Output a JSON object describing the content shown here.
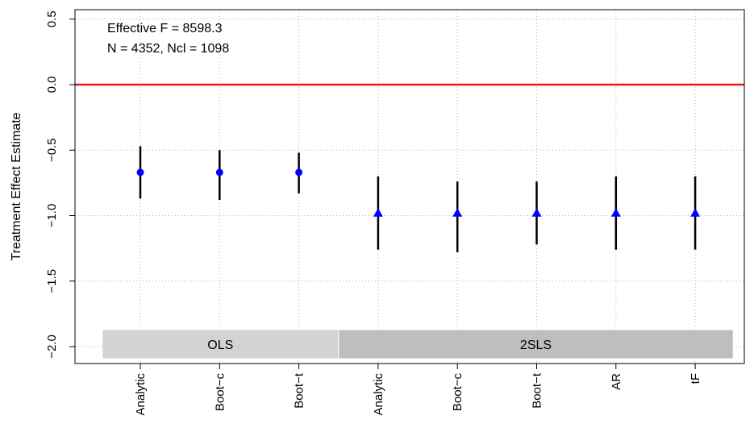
{
  "chart_data": {
    "type": "scatter",
    "title": "",
    "xlabel": "",
    "ylabel": "Treatment Effect Estimate",
    "ylim": [
      -2.05,
      0.55
    ],
    "yticks": [
      -2.0,
      -1.5,
      -1.0,
      -0.5,
      0.0,
      0.5
    ],
    "ytick_labels": [
      "−2.0",
      "−1.5",
      "−1.0",
      "−0.5",
      "0.0",
      "0.5"
    ],
    "grid": true,
    "reference_line": {
      "y": 0.0,
      "color": "#e41a1c"
    },
    "annotations": [
      "Effective F = 8598.3",
      "N = 4352, Ncl = 1098"
    ],
    "groups": [
      {
        "label": "OLS",
        "start": 1,
        "end": 3,
        "color": "#d3d3d3"
      },
      {
        "label": "2SLS",
        "start": 4,
        "end": 8,
        "color": "#bebebe"
      }
    ],
    "categories": [
      "Analytic",
      "Boot−c",
      "Boot−t",
      "Analytic",
      "Boot−c",
      "Boot−t",
      "AR",
      "tF"
    ],
    "points": [
      {
        "estimate": -0.67,
        "lower": -0.87,
        "upper": -0.47,
        "marker": "circle"
      },
      {
        "estimate": -0.67,
        "lower": -0.88,
        "upper": -0.5,
        "marker": "circle"
      },
      {
        "estimate": -0.67,
        "lower": -0.83,
        "upper": -0.52,
        "marker": "circle"
      },
      {
        "estimate": -0.98,
        "lower": -1.26,
        "upper": -0.7,
        "marker": "triangle"
      },
      {
        "estimate": -0.98,
        "lower": -1.28,
        "upper": -0.74,
        "marker": "triangle"
      },
      {
        "estimate": -0.98,
        "lower": -1.22,
        "upper": -0.74,
        "marker": "triangle"
      },
      {
        "estimate": -0.98,
        "lower": -1.26,
        "upper": -0.7,
        "marker": "triangle"
      },
      {
        "estimate": -0.98,
        "lower": -1.26,
        "upper": -0.7,
        "marker": "triangle"
      }
    ],
    "marker_color": "#0000ff",
    "errorbar_color": "#000000"
  }
}
